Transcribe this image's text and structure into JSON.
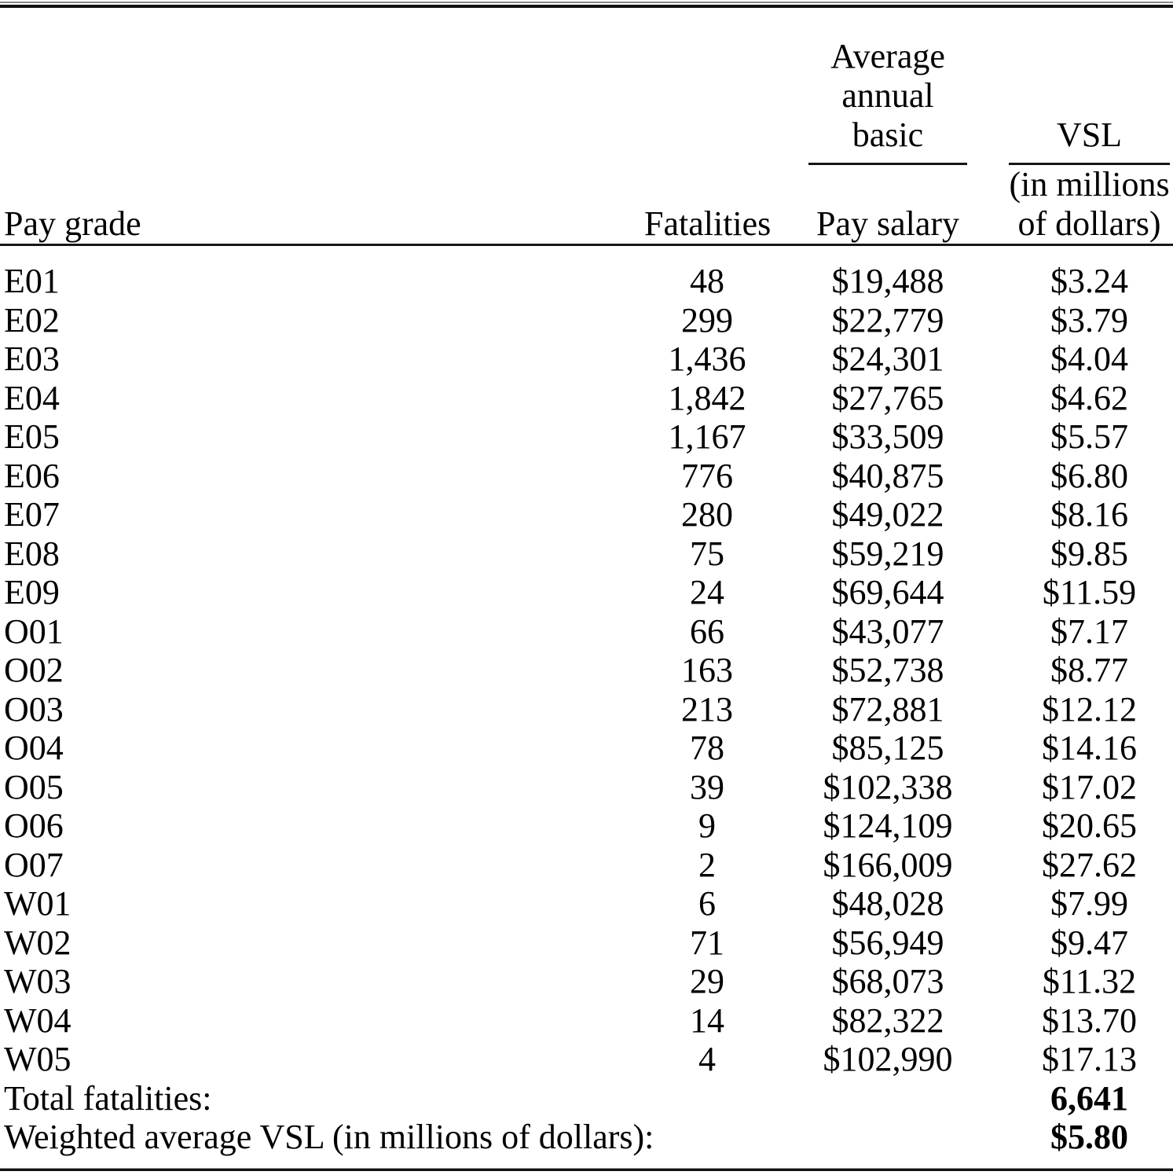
{
  "table": {
    "header": {
      "pay_grade": "Pay grade",
      "fatalities": "Fatalities",
      "salary_group_lines": [
        "Average",
        "annual",
        "basic"
      ],
      "salary_sub": "Pay salary",
      "vsl_group": "VSL",
      "vsl_sub_lines": [
        "(in millions",
        "of dollars)"
      ]
    },
    "rows": [
      {
        "pay_grade": "E01",
        "fatalities": "48",
        "pay_salary": "$19,488",
        "vsl": "$3.24"
      },
      {
        "pay_grade": "E02",
        "fatalities": "299",
        "pay_salary": "$22,779",
        "vsl": "$3.79"
      },
      {
        "pay_grade": "E03",
        "fatalities": "1,436",
        "pay_salary": "$24,301",
        "vsl": "$4.04"
      },
      {
        "pay_grade": "E04",
        "fatalities": "1,842",
        "pay_salary": "$27,765",
        "vsl": "$4.62"
      },
      {
        "pay_grade": "E05",
        "fatalities": "1,167",
        "pay_salary": "$33,509",
        "vsl": "$5.57"
      },
      {
        "pay_grade": "E06",
        "fatalities": "776",
        "pay_salary": "$40,875",
        "vsl": "$6.80"
      },
      {
        "pay_grade": "E07",
        "fatalities": "280",
        "pay_salary": "$49,022",
        "vsl": "$8.16"
      },
      {
        "pay_grade": "E08",
        "fatalities": "75",
        "pay_salary": "$59,219",
        "vsl": "$9.85"
      },
      {
        "pay_grade": "E09",
        "fatalities": "24",
        "pay_salary": "$69,644",
        "vsl": "$11.59"
      },
      {
        "pay_grade": "O01",
        "fatalities": "66",
        "pay_salary": "$43,077",
        "vsl": "$7.17"
      },
      {
        "pay_grade": "O02",
        "fatalities": "163",
        "pay_salary": "$52,738",
        "vsl": "$8.77"
      },
      {
        "pay_grade": "O03",
        "fatalities": "213",
        "pay_salary": "$72,881",
        "vsl": "$12.12"
      },
      {
        "pay_grade": "O04",
        "fatalities": "78",
        "pay_salary": "$85,125",
        "vsl": "$14.16"
      },
      {
        "pay_grade": "O05",
        "fatalities": "39",
        "pay_salary": "$102,338",
        "vsl": "$17.02"
      },
      {
        "pay_grade": "O06",
        "fatalities": "9",
        "pay_salary": "$124,109",
        "vsl": "$20.65"
      },
      {
        "pay_grade": "O07",
        "fatalities": "2",
        "pay_salary": "$166,009",
        "vsl": "$27.62"
      },
      {
        "pay_grade": "W01",
        "fatalities": "6",
        "pay_salary": "$48,028",
        "vsl": "$7.99"
      },
      {
        "pay_grade": "W02",
        "fatalities": "71",
        "pay_salary": "$56,949",
        "vsl": "$9.47"
      },
      {
        "pay_grade": "W03",
        "fatalities": "29",
        "pay_salary": "$68,073",
        "vsl": "$11.32"
      },
      {
        "pay_grade": "W04",
        "fatalities": "14",
        "pay_salary": "$82,322",
        "vsl": "$13.70"
      },
      {
        "pay_grade": "W05",
        "fatalities": "4",
        "pay_salary": "$102,990",
        "vsl": "$17.13"
      }
    ],
    "footer_rows": [
      {
        "label": "Total fatalities:",
        "value": "6,641"
      },
      {
        "label": "Weighted average VSL (in millions of dollars):",
        "value": "$5.80"
      }
    ]
  }
}
